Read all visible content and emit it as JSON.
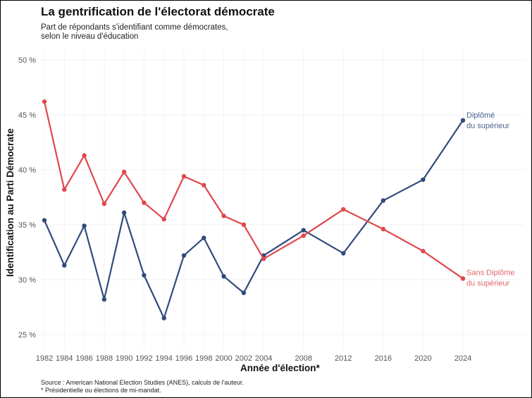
{
  "chart_data": {
    "type": "line",
    "title": "La gentrification de l'électorat démocrate",
    "subtitle": [
      "Part de répondants s'identifiant comme démocrates,",
      "selon le niveau d'éducation"
    ],
    "xlabel": "Année d'élection*",
    "ylabel": "Identification au Parti Démocrate",
    "x": [
      1982,
      1984,
      1986,
      1988,
      1990,
      1992,
      1994,
      1996,
      1998,
      2000,
      2002,
      2004,
      2008,
      2012,
      2016,
      2020,
      2024
    ],
    "x_tick_labels": [
      "1982",
      "1984",
      "1986",
      "1988",
      "1990",
      "1992",
      "1994",
      "1996",
      "1998",
      "2000",
      "2002",
      "2004",
      "2008",
      "2012",
      "2016",
      "2020",
      "2024"
    ],
    "ylim": [
      23.6,
      50.5
    ],
    "y_ticks": [
      25,
      30,
      35,
      40,
      45,
      50
    ],
    "y_tick_labels": [
      "25 %",
      "30 %",
      "35 %",
      "40 %",
      "45 %",
      "50 %"
    ],
    "grid": true,
    "legend": "direct labels at line ends (right)",
    "series": [
      {
        "name": "Diplômé du supérieur",
        "label_lines": [
          "Diplômé",
          "du supérieur"
        ],
        "color": "#2f4b7c",
        "label_color": "#4a6391",
        "values": [
          35.4,
          31.3,
          34.9,
          28.2,
          36.1,
          30.4,
          26.5,
          32.2,
          33.8,
          30.3,
          28.8,
          32.2,
          34.5,
          32.4,
          37.2,
          39.1,
          44.5
        ]
      },
      {
        "name": "Sans Diplôme du supérieur",
        "label_lines": [
          "Sans Diplôme",
          "du supérieur"
        ],
        "color": "#e0474c",
        "label_color": "#e0676b",
        "values": [
          46.2,
          38.2,
          41.3,
          36.9,
          39.8,
          37.0,
          35.5,
          39.4,
          38.6,
          35.8,
          35.0,
          31.9,
          34.0,
          36.4,
          34.6,
          32.6,
          30.1
        ]
      }
    ],
    "caption": [
      "Source : American National Election Studies (ANES), calculs de l'auteur.",
      "* Présidentielle ou élections de mi-mandat."
    ]
  }
}
